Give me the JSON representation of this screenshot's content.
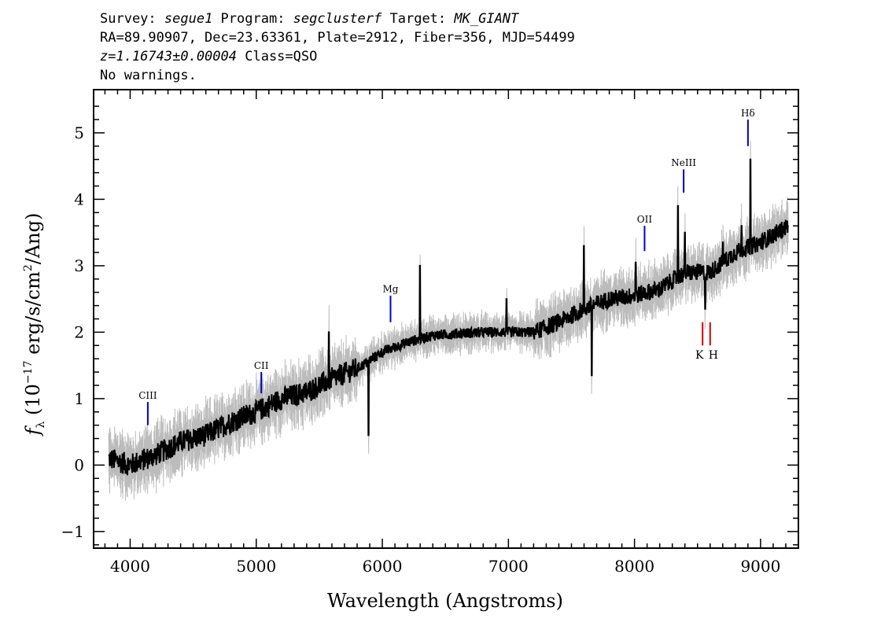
{
  "header": {
    "survey_label": "Survey: ",
    "survey_value": "segue1",
    "program_label": " Program: ",
    "program_value": "segclusterf",
    "target_label": " Target: ",
    "target_value": "MK_GIANT",
    "line2": "RA=89.90907, Dec=23.63361, Plate=2912, Fiber=356, MJD=54499",
    "redshift": "z=1.16743±0.00004",
    "class_text": " Class=QSO",
    "warnings": "No warnings."
  },
  "chart_data": {
    "type": "line",
    "xlabel": "Wavelength (Angstroms)",
    "ylabel_prefix": "f",
    "ylabel_sub": "λ",
    "ylabel_open": " (10",
    "ylabel_exp": "−17",
    "ylabel_mid": " erg/s/cm",
    "ylabel_exp2": "2",
    "ylabel_close": "/Ang)",
    "xlim": [
      3710,
      9300
    ],
    "ylim": [
      -1.25,
      5.65
    ],
    "x_ticks": [
      4000,
      5000,
      6000,
      7000,
      8000,
      9000
    ],
    "x_tick_labels": [
      "4000",
      "5000",
      "6000",
      "7000",
      "8000",
      "9000"
    ],
    "y_ticks": [
      -1,
      0,
      1,
      2,
      3,
      4,
      5
    ],
    "y_tick_labels": [
      "−1",
      "0",
      "1",
      "2",
      "3",
      "4",
      "5"
    ],
    "x_range_data": [
      3830,
      9220
    ],
    "colors": {
      "flux": "#000000",
      "error": "#bcbcbc",
      "emission": "#0000cc",
      "absorption": "#dd0000"
    },
    "series": [
      {
        "trend_points": [
          [
            3830,
            0.1
          ],
          [
            4000,
            0.0
          ],
          [
            4200,
            0.15
          ],
          [
            4400,
            0.35
          ],
          [
            4600,
            0.45
          ],
          [
            4800,
            0.65
          ],
          [
            5000,
            0.8
          ],
          [
            5200,
            1.0
          ],
          [
            5400,
            1.1
          ],
          [
            5600,
            1.3
          ],
          [
            5800,
            1.45
          ],
          [
            6000,
            1.7
          ],
          [
            6200,
            1.85
          ],
          [
            6400,
            1.95
          ],
          [
            6600,
            1.98
          ],
          [
            6800,
            2.0
          ],
          [
            7000,
            2.0
          ],
          [
            7200,
            2.0
          ],
          [
            7400,
            2.15
          ],
          [
            7600,
            2.35
          ],
          [
            7800,
            2.5
          ],
          [
            8000,
            2.55
          ],
          [
            8200,
            2.65
          ],
          [
            8400,
            2.9
          ],
          [
            8600,
            2.9
          ],
          [
            8800,
            3.2
          ],
          [
            9000,
            3.35
          ],
          [
            9220,
            3.6
          ]
        ],
        "spike_points": [
          [
            5577,
            2.0
          ],
          [
            5890,
            0.45
          ],
          [
            6300,
            3.0
          ],
          [
            6985,
            2.5
          ],
          [
            7600,
            3.3
          ],
          [
            7660,
            1.35
          ],
          [
            8010,
            3.05
          ],
          [
            8345,
            3.9
          ],
          [
            8400,
            3.5
          ],
          [
            8560,
            2.35
          ],
          [
            8700,
            3.35
          ],
          [
            8850,
            3.6
          ],
          [
            8920,
            4.6
          ]
        ]
      }
    ],
    "emission_lines": [
      {
        "name": "CIII",
        "x": 4140,
        "y_top": 0.95,
        "y_bottom": 0.6,
        "label_y": 1.0
      },
      {
        "name": "CII",
        "x": 5040,
        "y_top": 1.4,
        "y_bottom": 1.08,
        "label_y": 1.45
      },
      {
        "name": "Mg",
        "x": 6065,
        "y_top": 2.55,
        "y_bottom": 2.15,
        "label_y": 2.6
      },
      {
        "name": "OII",
        "x": 8080,
        "y_top": 3.6,
        "y_bottom": 3.22,
        "label_y": 3.65
      },
      {
        "name": "NeIII",
        "x": 8390,
        "y_top": 4.45,
        "y_bottom": 4.1,
        "label_y": 4.5
      },
      {
        "name": "Hδ",
        "x": 8900,
        "y_top": 5.2,
        "y_bottom": 4.8,
        "label_y": 5.25
      }
    ],
    "absorption_lines": [
      {
        "name": "K",
        "x": 8540,
        "y_top": 2.15,
        "y_bottom": 1.8,
        "label_y": 1.6
      },
      {
        "name": "H",
        "x": 8600,
        "y_top": 2.15,
        "y_bottom": 1.8,
        "label_y": 1.6
      }
    ]
  }
}
